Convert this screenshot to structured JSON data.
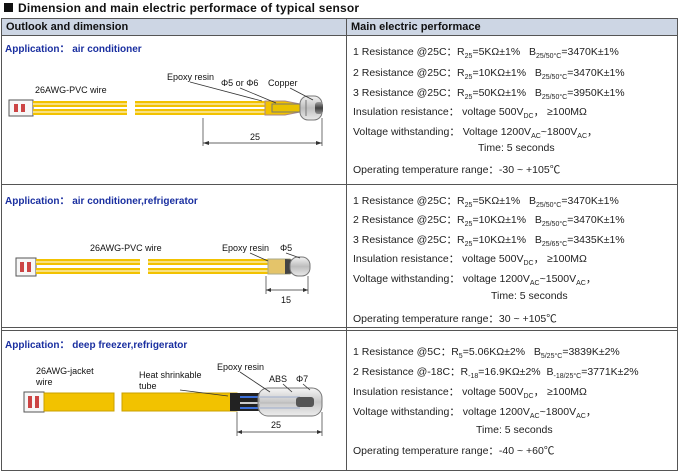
{
  "title": "Dimension and main electric performace of typical sensor",
  "headers": {
    "left": "Outlook and dimension",
    "right": "Main electric performace"
  },
  "rows": [
    {
      "application": "Application： air conditioner",
      "labels": {
        "wire": "26AWG-PVC wire",
        "epoxy": "Epoxy resin",
        "diam": "Φ5 or Φ6",
        "copper": "Copper",
        "length": "25"
      },
      "specs": [
        {
          "a": "1 Resistance @25C：",
          "b": "R",
          "bs": "25",
          "c": "=5KΩ±1%",
          "d": "B",
          "ds": "25/50°C",
          "e": "=3470K±1%"
        },
        {
          "a": "2 Resistance @25C：",
          "b": "R",
          "bs": "25",
          "c": "=10KΩ±1%",
          "d": "B",
          "ds": "25/50°C",
          "e": "=3470K±1%"
        },
        {
          "a": "3 Resistance @25C：",
          "b": "R",
          "bs": "25",
          "c": "=50KΩ±1%",
          "d": "B",
          "ds": "25/50°C",
          "e": "=3950K±1%"
        }
      ],
      "insulation": {
        "label": "Insulation resistance：",
        "pre": "voltage 500V",
        "sub": "DC",
        "post": "， ≥100MΩ"
      },
      "withstand": {
        "label": "Voltage withstanding：",
        "pre": "Voltage 1200V",
        "sub1": "AC",
        "mid": "~1800V",
        "sub2": "AC",
        "post": "，"
      },
      "time": "Time: 5 seconds",
      "temp": "Operating temperature range：-30 ~ +105℃"
    },
    {
      "application": "Application： air conditioner,refrigerator",
      "labels": {
        "wire": "26AWG-PVC wire",
        "epoxy": "Epoxy resin",
        "diam": "Φ5",
        "length": "15"
      },
      "specs": [
        {
          "a": "1 Resistance @25C：",
          "b": "R",
          "bs": "25",
          "c": "=5KΩ±1%",
          "d": "B",
          "ds": "25/50°C",
          "e": "=3470K±1%"
        },
        {
          "a": "2 Resistance @25C：",
          "b": "R",
          "bs": "25",
          "c": "=10KΩ±1%",
          "d": "B",
          "ds": "25/50°C",
          "e": "=3470K±1%"
        },
        {
          "a": "3 Resistance @25C：",
          "b": "R",
          "bs": "25",
          "c": "=10KΩ±1%",
          "d": "B",
          "ds": "25/65°C",
          "e": "=3435K±1%"
        }
      ],
      "insulation": {
        "label": "Insulation resistance：",
        "pre": "voltage 500V",
        "sub": "DC",
        "post": "， ≥100MΩ"
      },
      "withstand": {
        "label": "Voltage withstanding：",
        "pre": "voltage 1200V",
        "sub1": "AC",
        "mid": "~1500V",
        "sub2": "AC",
        "post": "，"
      },
      "time": "Time: 5 seconds",
      "temp": "Operating temperature range：30 ~ +105℃"
    },
    {
      "application": "Application： deep freezer,refrigerator",
      "labels": {
        "wire1": "26AWG-jacket",
        "wire2": "wire",
        "heat1": "Heat shrinkable",
        "heat2": "tube",
        "epoxy": "Epoxy resin",
        "abs": "ABS",
        "diam": "Φ7",
        "length": "25"
      },
      "specs": [
        {
          "a": "1 Resistance @5C：",
          "b": "R",
          "bs": "5",
          "c": "=5.06KΩ±2%",
          "d": "B",
          "ds": "5/25°C",
          "e": "=3839K±2%"
        },
        {
          "a": "2 Resistance @-18C：",
          "b": "R",
          "bs": "-18",
          "c": "=16.9KΩ±2%",
          "d": "B",
          "ds": "-18/25°C",
          "e": "=3771K±2%"
        }
      ],
      "insulation": {
        "label": "Insulation resistance：",
        "pre": "voltage 500V",
        "sub": "DC",
        "post": "， ≥100MΩ"
      },
      "withstand": {
        "label": "Voltage withstanding：",
        "pre": "voltage 1200V",
        "sub1": "AC",
        "mid": "~1800V",
        "sub2": "AC",
        "post": "，"
      },
      "time": "Time: 5 seconds",
      "temp": "Operating temperature range：-40 ~ +60℃"
    }
  ],
  "colors": {
    "header_bg": "#cdd6e4",
    "wire_yellow": "#f2c200",
    "wire_stripe": "#ffffff",
    "blue_text": "#1a2fa0"
  }
}
